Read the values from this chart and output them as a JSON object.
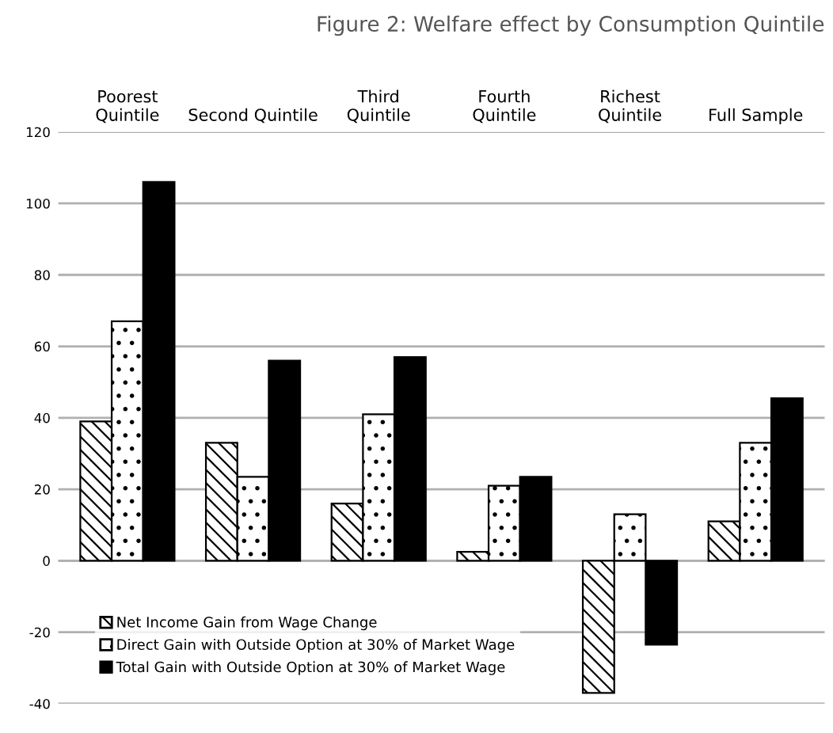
{
  "chart_data": {
    "type": "bar",
    "title": "Figure 2: Welfare effect by Consumption Quintile",
    "categories": [
      "Poorest\nQuintile",
      "Second Quintile",
      "Third\nQuintile",
      "Fourth\nQuintile",
      "Richest\nQuintile",
      "Full Sample"
    ],
    "series": [
      {
        "name": "Net Income Gain from Wage Change",
        "color": "#ffffff",
        "values": [
          39,
          33,
          16,
          2.5,
          -37,
          11
        ]
      },
      {
        "name": "Direct Gain with Outside Option at 30% of Market Wage",
        "color": "#ffffff",
        "values": [
          67,
          23.5,
          41,
          21,
          13,
          33
        ]
      },
      {
        "name": "Total Gain with Outside Option at 30% of Market Wage",
        "color": "#000000",
        "values": [
          106,
          56,
          57,
          23.5,
          -23.5,
          45.5
        ]
      }
    ],
    "ylim": [
      -40,
      120
    ],
    "yticks": [
      -40,
      -20,
      0,
      20,
      40,
      60,
      80,
      100,
      120
    ],
    "grid": "y",
    "legend": "bottom left"
  }
}
